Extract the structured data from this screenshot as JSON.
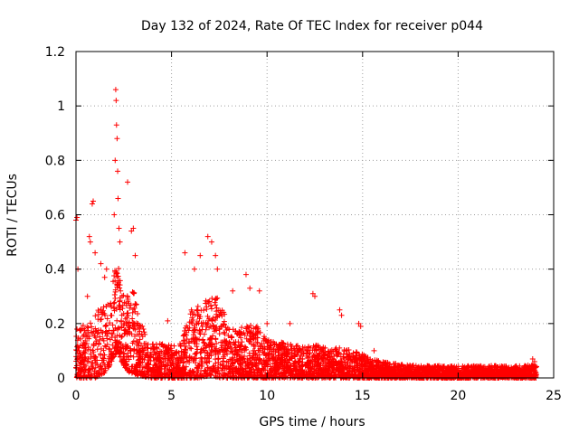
{
  "chart_data": {
    "type": "scatter",
    "title": "Day 132 of 2024, Rate Of TEC Index for receiver p044",
    "xlabel": "GPS time / hours",
    "ylabel": "ROTI / TECUs",
    "xlim": [
      0,
      25
    ],
    "ylim": [
      0,
      1.2
    ],
    "x_ticks": [
      "0",
      "5",
      "10",
      "15",
      "20",
      "25"
    ],
    "y_ticks": [
      "0",
      "0.2",
      "0.4",
      "0.6",
      "0.8",
      "1",
      "1.2"
    ],
    "grid": true,
    "marker": "+",
    "color": "#ff0000",
    "envelope_hours": [
      0,
      0.5,
      1,
      1.5,
      1.8,
      2,
      2.2,
      2.5,
      2.8,
      3,
      3.3,
      3.6,
      4,
      5,
      5.5,
      6,
      6.5,
      7,
      7.5,
      8,
      8.5,
      9,
      9.5,
      10,
      11,
      12,
      13,
      14,
      14.5,
      15,
      15.5,
      16,
      17,
      18,
      20,
      22,
      23.5,
      24
    ],
    "envelope_typical_max": [
      0.18,
      0.2,
      0.25,
      0.27,
      0.3,
      0.4,
      0.42,
      0.3,
      0.33,
      0.35,
      0.22,
      0.17,
      0.13,
      0.12,
      0.13,
      0.25,
      0.27,
      0.3,
      0.3,
      0.18,
      0.18,
      0.2,
      0.19,
      0.14,
      0.13,
      0.12,
      0.12,
      0.11,
      0.1,
      0.09,
      0.07,
      0.06,
      0.05,
      0.045,
      0.045,
      0.045,
      0.045,
      0.05
    ],
    "envelope_typical_min": [
      0.0,
      0.0,
      0.0,
      0.02,
      0.05,
      0.08,
      0.1,
      0.04,
      0.02,
      0.01,
      0.01,
      0.0,
      0.0,
      0.0,
      0.0,
      0.0,
      0.0,
      0.01,
      0.0,
      0.0,
      0.0,
      0.0,
      0.0,
      0.0,
      0.0,
      0.0,
      0.0,
      0.0,
      0.0,
      0.0,
      0.0,
      0.0,
      0.0,
      0.0,
      0.0,
      0.0,
      0.0,
      0.0
    ],
    "peak_points": [
      {
        "x": 0.0,
        "y": 0.58
      },
      {
        "x": 0.05,
        "y": 0.59
      },
      {
        "x": 0.1,
        "y": 0.4
      },
      {
        "x": 0.6,
        "y": 0.3
      },
      {
        "x": 0.7,
        "y": 0.52
      },
      {
        "x": 0.75,
        "y": 0.5
      },
      {
        "x": 0.85,
        "y": 0.64
      },
      {
        "x": 0.9,
        "y": 0.65
      },
      {
        "x": 1.0,
        "y": 0.46
      },
      {
        "x": 1.3,
        "y": 0.42
      },
      {
        "x": 1.5,
        "y": 0.37
      },
      {
        "x": 1.6,
        "y": 0.4
      },
      {
        "x": 2.0,
        "y": 0.6
      },
      {
        "x": 2.05,
        "y": 0.8
      },
      {
        "x": 2.08,
        "y": 1.06
      },
      {
        "x": 2.1,
        "y": 1.02
      },
      {
        "x": 2.12,
        "y": 0.93
      },
      {
        "x": 2.15,
        "y": 0.88
      },
      {
        "x": 2.18,
        "y": 0.76
      },
      {
        "x": 2.2,
        "y": 0.66
      },
      {
        "x": 2.25,
        "y": 0.55
      },
      {
        "x": 2.3,
        "y": 0.5
      },
      {
        "x": 2.7,
        "y": 0.72
      },
      {
        "x": 2.9,
        "y": 0.54
      },
      {
        "x": 3.0,
        "y": 0.55
      },
      {
        "x": 3.1,
        "y": 0.45
      },
      {
        "x": 4.8,
        "y": 0.21
      },
      {
        "x": 5.7,
        "y": 0.46
      },
      {
        "x": 6.2,
        "y": 0.4
      },
      {
        "x": 6.5,
        "y": 0.45
      },
      {
        "x": 6.9,
        "y": 0.52
      },
      {
        "x": 7.1,
        "y": 0.5
      },
      {
        "x": 7.3,
        "y": 0.45
      },
      {
        "x": 7.4,
        "y": 0.4
      },
      {
        "x": 8.2,
        "y": 0.32
      },
      {
        "x": 8.9,
        "y": 0.38
      },
      {
        "x": 9.1,
        "y": 0.33
      },
      {
        "x": 9.6,
        "y": 0.32
      },
      {
        "x": 10.0,
        "y": 0.2
      },
      {
        "x": 11.2,
        "y": 0.2
      },
      {
        "x": 12.4,
        "y": 0.31
      },
      {
        "x": 12.5,
        "y": 0.3
      },
      {
        "x": 13.8,
        "y": 0.25
      },
      {
        "x": 13.9,
        "y": 0.23
      },
      {
        "x": 14.8,
        "y": 0.2
      },
      {
        "x": 14.9,
        "y": 0.19
      },
      {
        "x": 15.6,
        "y": 0.1
      },
      {
        "x": 23.9,
        "y": 0.07
      },
      {
        "x": 24.0,
        "y": 0.06
      }
    ]
  }
}
